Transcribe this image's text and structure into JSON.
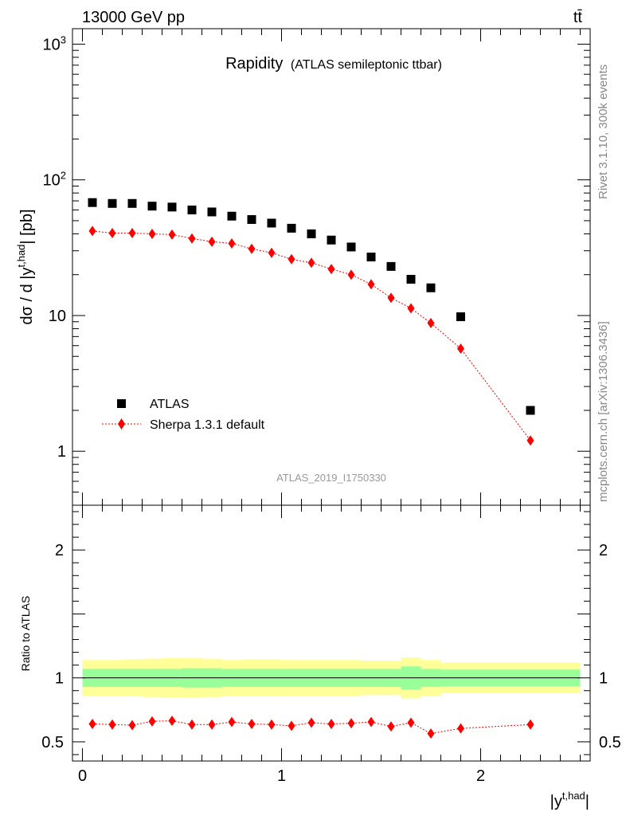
{
  "header": {
    "energy_label": "13000 GeV pp",
    "process_label": "tt̄"
  },
  "side_labels": {
    "rivet": "Rivet 3.1.10,  300k events",
    "mcplots": "mcplots.cern.ch [arXiv:1306.3436]"
  },
  "watermark": "ATLAS_2019_I1750330",
  "colors": {
    "data": "#000000",
    "mc": "#ff0000",
    "band_inner": "#99ff99",
    "band_outer": "#ffff99"
  },
  "chart_data": [
    {
      "type": "scatter",
      "panel": "main",
      "title": "Rapidity",
      "subtitle": "(ATLAS semileptonic ttbar)",
      "ylabel": "dσ / d |y^{t,had}| [pb]",
      "yscale": "log",
      "ylim": [
        0.4,
        1300
      ],
      "xlim": [
        -0.05,
        2.55
      ],
      "y_ticks": [
        {
          "value": 1,
          "label": "1"
        },
        {
          "value": 10,
          "label": "10"
        },
        {
          "value": 100,
          "label": "10^2"
        },
        {
          "value": 1000,
          "label": "10^3"
        }
      ],
      "legend_position": "lower-left",
      "series": [
        {
          "name": "ATLAS",
          "style": "black squares",
          "x": [
            0.05,
            0.15,
            0.25,
            0.35,
            0.45,
            0.55,
            0.65,
            0.75,
            0.85,
            0.95,
            1.05,
            1.15,
            1.25,
            1.35,
            1.45,
            1.55,
            1.65,
            1.75,
            1.9,
            2.25
          ],
          "y": [
            68,
            67,
            67,
            64,
            63,
            60,
            58,
            54,
            51,
            48,
            44,
            40,
            36,
            32,
            27,
            23,
            18.5,
            16,
            9.8,
            2.0
          ]
        },
        {
          "name": "Sherpa 1.3.1 default",
          "style": "red diamonds, dotted line",
          "x": [
            0.05,
            0.15,
            0.25,
            0.35,
            0.45,
            0.55,
            0.65,
            0.75,
            0.85,
            0.95,
            1.05,
            1.15,
            1.25,
            1.35,
            1.45,
            1.55,
            1.65,
            1.75,
            1.9,
            2.25
          ],
          "y": [
            42,
            40.5,
            40.5,
            40,
            39.5,
            37,
            35,
            34,
            31,
            29,
            26,
            24.5,
            22,
            20,
            17,
            13.5,
            11.3,
            8.8,
            5.7,
            1.2
          ]
        }
      ]
    },
    {
      "type": "scatter",
      "panel": "ratio",
      "ylabel": "Ratio to ATLAS",
      "xlabel": "|y^{t,had}|",
      "ylim": [
        0.35,
        2.35
      ],
      "xlim": [
        -0.05,
        2.55
      ],
      "y_ticks": [
        {
          "value": 0.5,
          "label": "0.5"
        },
        {
          "value": 1,
          "label": "1"
        },
        {
          "value": 2,
          "label": "2"
        }
      ],
      "x_ticks": [
        {
          "value": 0,
          "label": "0"
        },
        {
          "value": 1,
          "label": "1"
        },
        {
          "value": 2,
          "label": "2"
        }
      ],
      "reference_line": 1,
      "uncertainty_bands": {
        "bin_edges": [
          0,
          0.1,
          0.2,
          0.3,
          0.4,
          0.5,
          0.6,
          0.7,
          0.8,
          0.9,
          1.0,
          1.1,
          1.2,
          1.3,
          1.4,
          1.5,
          1.6,
          1.7,
          1.8,
          2.0,
          2.5
        ],
        "inner_halfwidth": [
          0.07,
          0.07,
          0.07,
          0.07,
          0.07,
          0.075,
          0.075,
          0.07,
          0.07,
          0.07,
          0.07,
          0.07,
          0.07,
          0.07,
          0.07,
          0.07,
          0.09,
          0.07,
          0.065,
          0.065
        ],
        "outer_halfwidth": [
          0.14,
          0.14,
          0.145,
          0.15,
          0.155,
          0.155,
          0.15,
          0.14,
          0.145,
          0.145,
          0.14,
          0.14,
          0.14,
          0.14,
          0.135,
          0.135,
          0.16,
          0.14,
          0.12,
          0.12
        ]
      },
      "series": [
        {
          "name": "Sherpa 1.3.1 default",
          "x": [
            0.05,
            0.15,
            0.25,
            0.35,
            0.45,
            0.55,
            0.65,
            0.75,
            0.85,
            0.95,
            1.05,
            1.15,
            1.25,
            1.35,
            1.45,
            1.55,
            1.65,
            1.75,
            1.9,
            2.25
          ],
          "y": [
            0.64,
            0.635,
            0.63,
            0.66,
            0.665,
            0.635,
            0.635,
            0.655,
            0.64,
            0.635,
            0.625,
            0.65,
            0.64,
            0.645,
            0.655,
            0.62,
            0.65,
            0.565,
            0.605,
            0.635
          ]
        }
      ]
    }
  ]
}
